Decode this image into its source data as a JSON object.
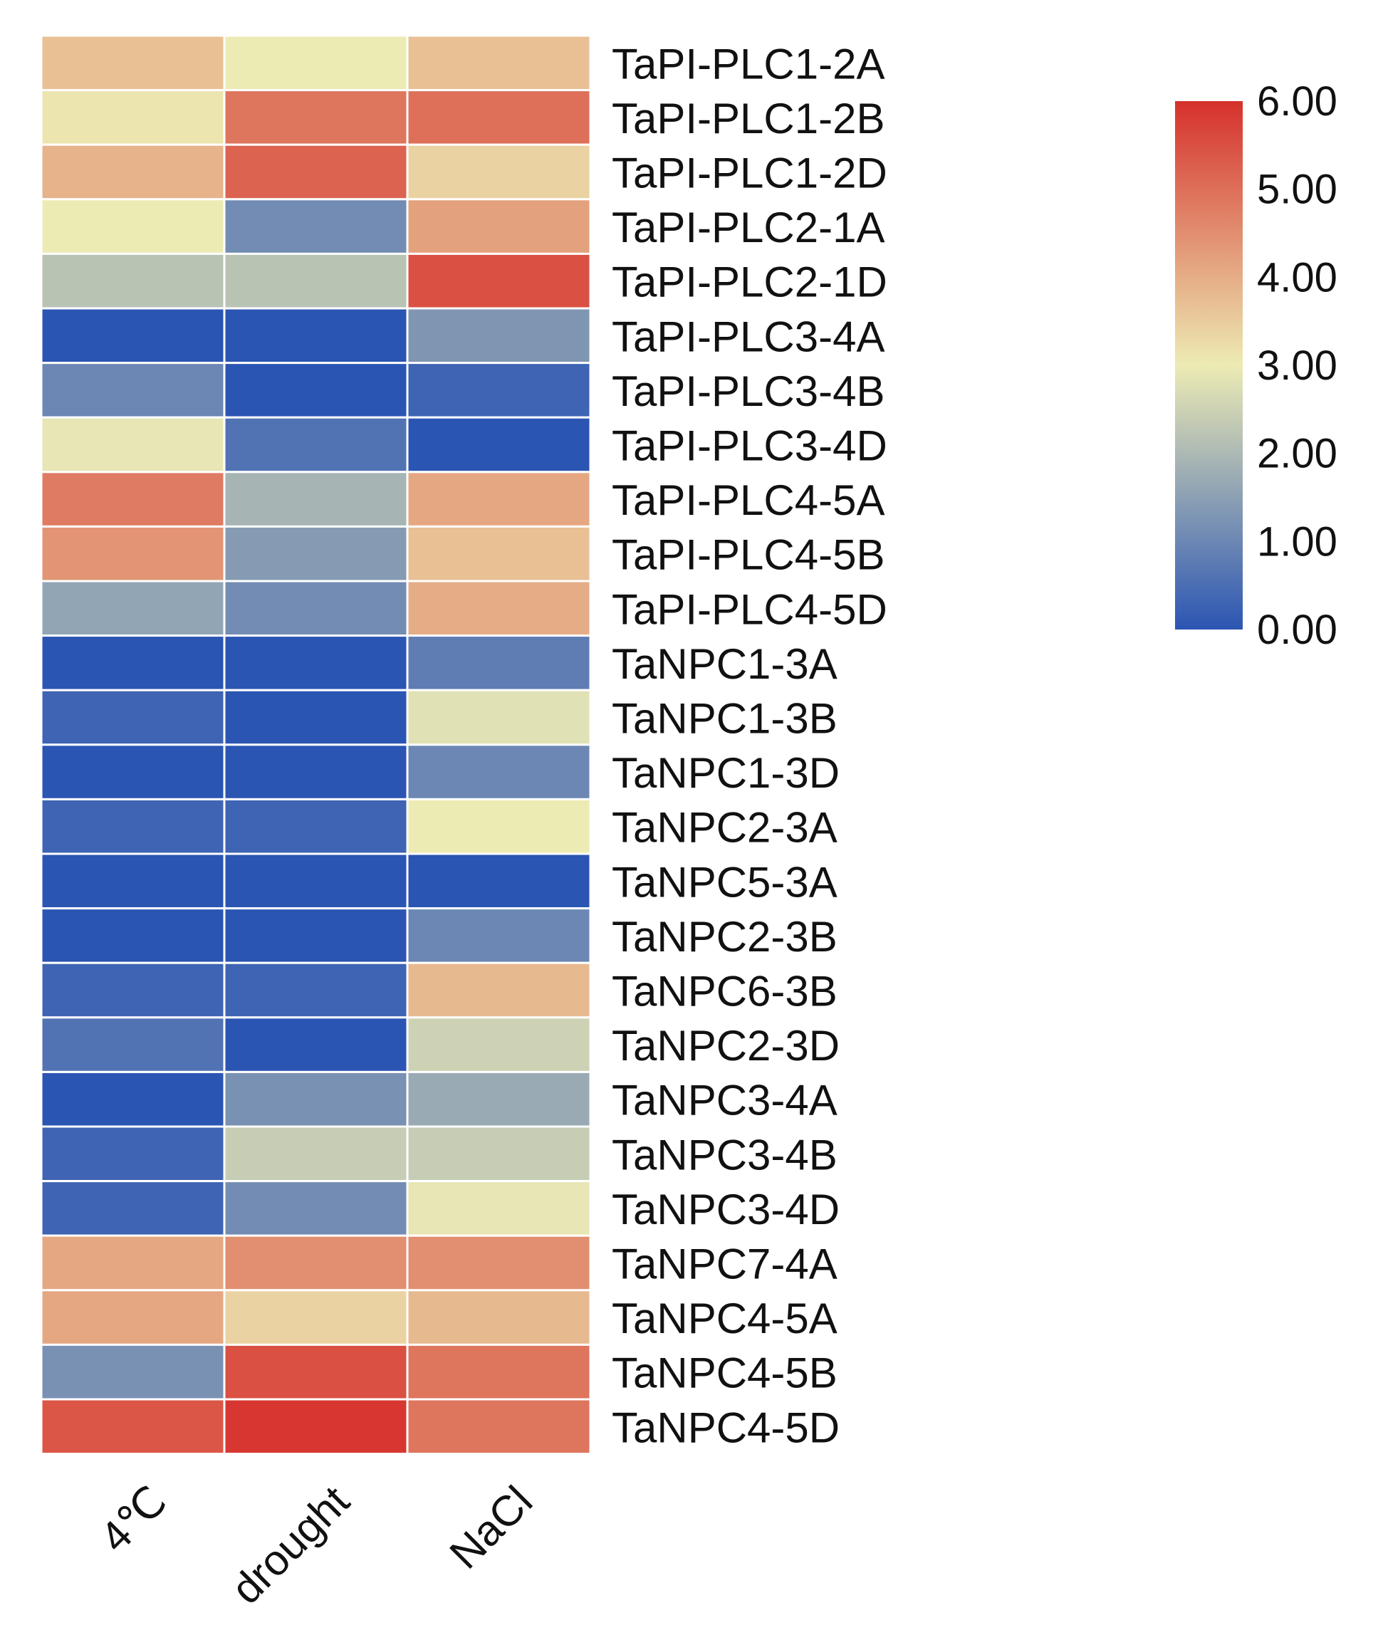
{
  "chart_data": {
    "type": "heatmap",
    "title": "",
    "columns": [
      "4℃",
      "drought",
      "NaCl"
    ],
    "rows": [
      "TaPI-PLC1-2A",
      "TaPI-PLC1-2B",
      "TaPI-PLC1-2D",
      "TaPI-PLC2-1A",
      "TaPI-PLC2-1D",
      "TaPI-PLC3-4A",
      "TaPI-PLC3-4B",
      "TaPI-PLC3-4D",
      "TaPI-PLC4-5A",
      "TaPI-PLC4-5B",
      "TaPI-PLC4-5D",
      "TaNPC1-3A",
      "TaNPC1-3B",
      "TaNPC1-3D",
      "TaNPC2-3A",
      "TaNPC5-3A",
      "TaNPC2-3B",
      "TaNPC6-3B",
      "TaNPC2-3D",
      "TaNPC3-4A",
      "TaNPC3-4B",
      "TaNPC3-4D",
      "TaNPC7-4A",
      "TaNPC4-5A",
      "TaNPC4-5B",
      "TaNPC4-5D"
    ],
    "values": [
      [
        3.7,
        3.0,
        3.7
      ],
      [
        3.1,
        4.9,
        5.0
      ],
      [
        3.9,
        5.2,
        3.4
      ],
      [
        3.0,
        1.1,
        4.2
      ],
      [
        2.2,
        2.2,
        5.5
      ],
      [
        0.0,
        0.0,
        1.3
      ],
      [
        1.0,
        0.0,
        0.3
      ],
      [
        2.9,
        0.6,
        0.0
      ],
      [
        4.8,
        1.9,
        4.1
      ],
      [
        4.4,
        1.4,
        3.7
      ],
      [
        1.6,
        1.1,
        4.0
      ],
      [
        0.0,
        0.0,
        0.8
      ],
      [
        0.3,
        0.0,
        2.8
      ],
      [
        0.0,
        0.0,
        1.0
      ],
      [
        0.3,
        0.3,
        3.0
      ],
      [
        0.0,
        0.0,
        0.0
      ],
      [
        0.0,
        0.0,
        1.0
      ],
      [
        0.3,
        0.3,
        3.8
      ],
      [
        0.6,
        0.0,
        2.5
      ],
      [
        0.0,
        1.2,
        1.7
      ],
      [
        0.3,
        2.4,
        2.4
      ],
      [
        0.3,
        1.1,
        2.9
      ],
      [
        4.1,
        4.5,
        4.5
      ],
      [
        4.1,
        3.4,
        3.8
      ],
      [
        1.2,
        5.5,
        4.9
      ],
      [
        5.4,
        5.9,
        4.9
      ]
    ],
    "colorscale": {
      "min": 0.0,
      "max": 6.0,
      "stops": [
        "#2b55b3",
        "#edebb4",
        "#d6312b"
      ],
      "ticks": [
        "0.00",
        "1.00",
        "2.00",
        "3.00",
        "4.00",
        "5.00",
        "6.00"
      ]
    },
    "legend_position": "top-right",
    "xlabel": "",
    "ylabel": ""
  }
}
